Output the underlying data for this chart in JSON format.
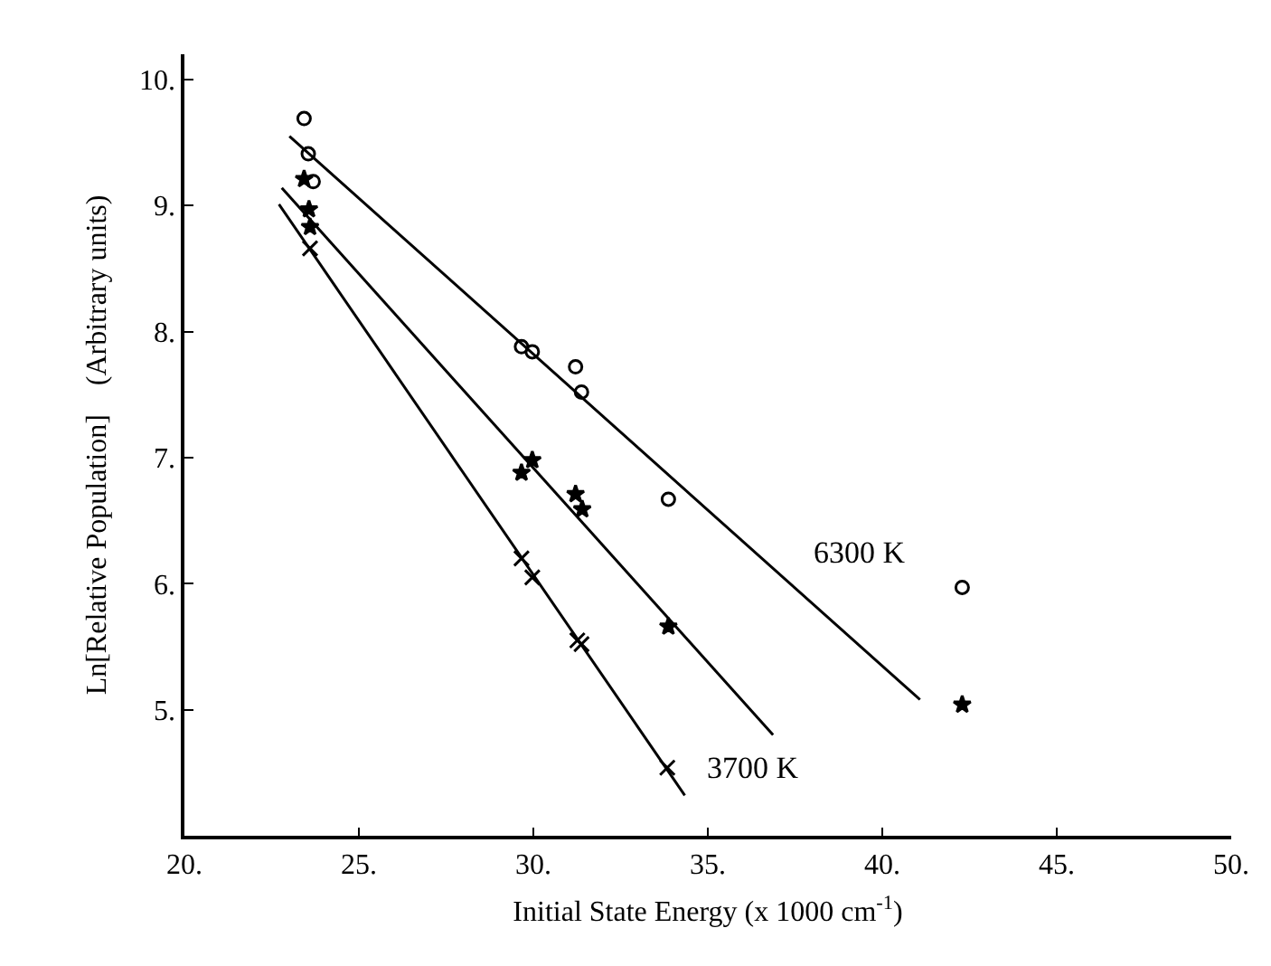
{
  "chart_data": {
    "type": "scatter",
    "xlabel": "Initial State Energy (x 1000 cm$^{-1}$)",
    "ylabel": "Ln[Relative Population]    (Arbitrary units)",
    "xlim": [
      20,
      50
    ],
    "ylim": [
      4,
      10.2
    ],
    "xticks": [
      {
        "value": 20,
        "label": "20."
      },
      {
        "value": 25,
        "label": "25."
      },
      {
        "value": 30,
        "label": "30."
      },
      {
        "value": 35,
        "label": "35."
      },
      {
        "value": 40,
        "label": "40."
      },
      {
        "value": 45,
        "label": "45."
      },
      {
        "value": 50,
        "label": "50."
      }
    ],
    "yticks": [
      {
        "value": 5,
        "label": "5."
      },
      {
        "value": 6,
        "label": "6."
      },
      {
        "value": 7,
        "label": "7."
      },
      {
        "value": 8,
        "label": "8."
      },
      {
        "value": 9,
        "label": "9."
      },
      {
        "value": 10,
        "label": "10."
      }
    ],
    "grid": false,
    "legend": false,
    "series": [
      {
        "marker": "circle",
        "color": "#000000",
        "x": [
          23.43,
          23.55,
          23.69,
          29.66,
          29.97,
          31.21,
          31.38,
          33.87,
          42.29
        ],
        "values": [
          9.69,
          9.41,
          9.19,
          7.88,
          7.84,
          7.72,
          7.52,
          6.67,
          5.97
        ]
      },
      {
        "marker": "star",
        "color": "#000000",
        "x": [
          23.43,
          23.57,
          23.6,
          29.97,
          29.66,
          31.21,
          31.4,
          33.87,
          42.29
        ],
        "values": [
          9.21,
          8.97,
          8.83,
          6.98,
          6.88,
          6.71,
          6.59,
          5.66,
          5.04
        ]
      },
      {
        "marker": "cross",
        "color": "#000000",
        "x": [
          23.6,
          29.66,
          29.97,
          31.26,
          31.38,
          33.84
        ],
        "values": [
          8.66,
          6.2,
          6.05,
          5.55,
          5.52,
          4.54
        ]
      },
      {
        "type": "line",
        "name": "6300 K",
        "marker": "none",
        "line_style": "solid",
        "color": "#000000",
        "x": [
          23.01,
          41.08
        ],
        "values": [
          9.55,
          5.08
        ]
      },
      {
        "type": "line",
        "marker": "none",
        "line_style": "solid",
        "color": "#000000",
        "x": [
          22.79,
          36.87
        ],
        "values": [
          9.14,
          4.8
        ]
      },
      {
        "type": "line",
        "name": "3700 K",
        "marker": "none",
        "line_style": "solid",
        "color": "#000000",
        "x": [
          22.71,
          34.34
        ],
        "values": [
          9.01,
          4.32
        ]
      }
    ]
  }
}
